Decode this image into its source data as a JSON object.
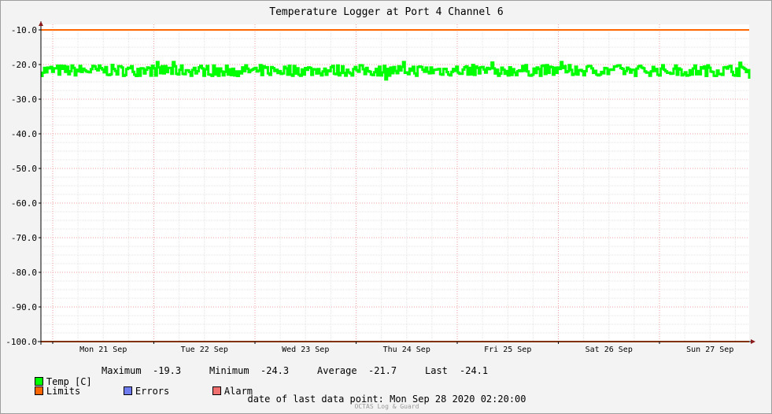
{
  "title": "Temperature Logger at Port 4 Channel 6",
  "chart_data": {
    "type": "line",
    "title": "Temperature Logger at Port 4 Channel 6",
    "ylim": [
      -100,
      -10
    ],
    "y_ticks": [
      "-10.0",
      "-20.0",
      "-30.0",
      "-40.0",
      "-50.0",
      "-60.0",
      "-70.0",
      "-80.0",
      "-90.0",
      "-100.0"
    ],
    "y_tick_values": [
      -10,
      -20,
      -30,
      -40,
      -50,
      -60,
      -70,
      -80,
      -90,
      -100
    ],
    "x_ticks": [
      "Mon 21 Sep",
      "Tue 22 Sep",
      "Wed 23 Sep",
      "Thu 24 Sep",
      "Fri 25 Sep",
      "Sat 26 Sep",
      "Sun 27 Sep"
    ],
    "x_range_days": [
      0,
      7.1
    ],
    "grid": true,
    "series": [
      {
        "name": "Temp [C]",
        "color": "#00ff00",
        "band_min": -24.3,
        "band_max": -19.3,
        "typical": -21.7,
        "last": -24.1
      },
      {
        "name": "Limits",
        "color": "#ff6600",
        "upper": -10.0,
        "lower": -100.0
      }
    ]
  },
  "legend": {
    "temp_label": "Temp [C]",
    "max_label": "Maximum",
    "max_value": "-19.3",
    "min_label": "Minimum",
    "min_value": "-24.3",
    "avg_label": "Average",
    "avg_value": "-21.7",
    "last_label": "Last",
    "last_value": "-24.1",
    "limits_label": "Limits",
    "errors_label": "Errors",
    "alarm_label": "Alarm",
    "temp_color": "#00ff00",
    "limits_color": "#ff6600",
    "errors_color": "#6e7cf0",
    "alarm_color": "#f07070"
  },
  "footer": {
    "last_data_point": "date of last data point:  Mon Sep 28 2020 02:20:00",
    "watermark": "OCTAS Log & Guard"
  }
}
